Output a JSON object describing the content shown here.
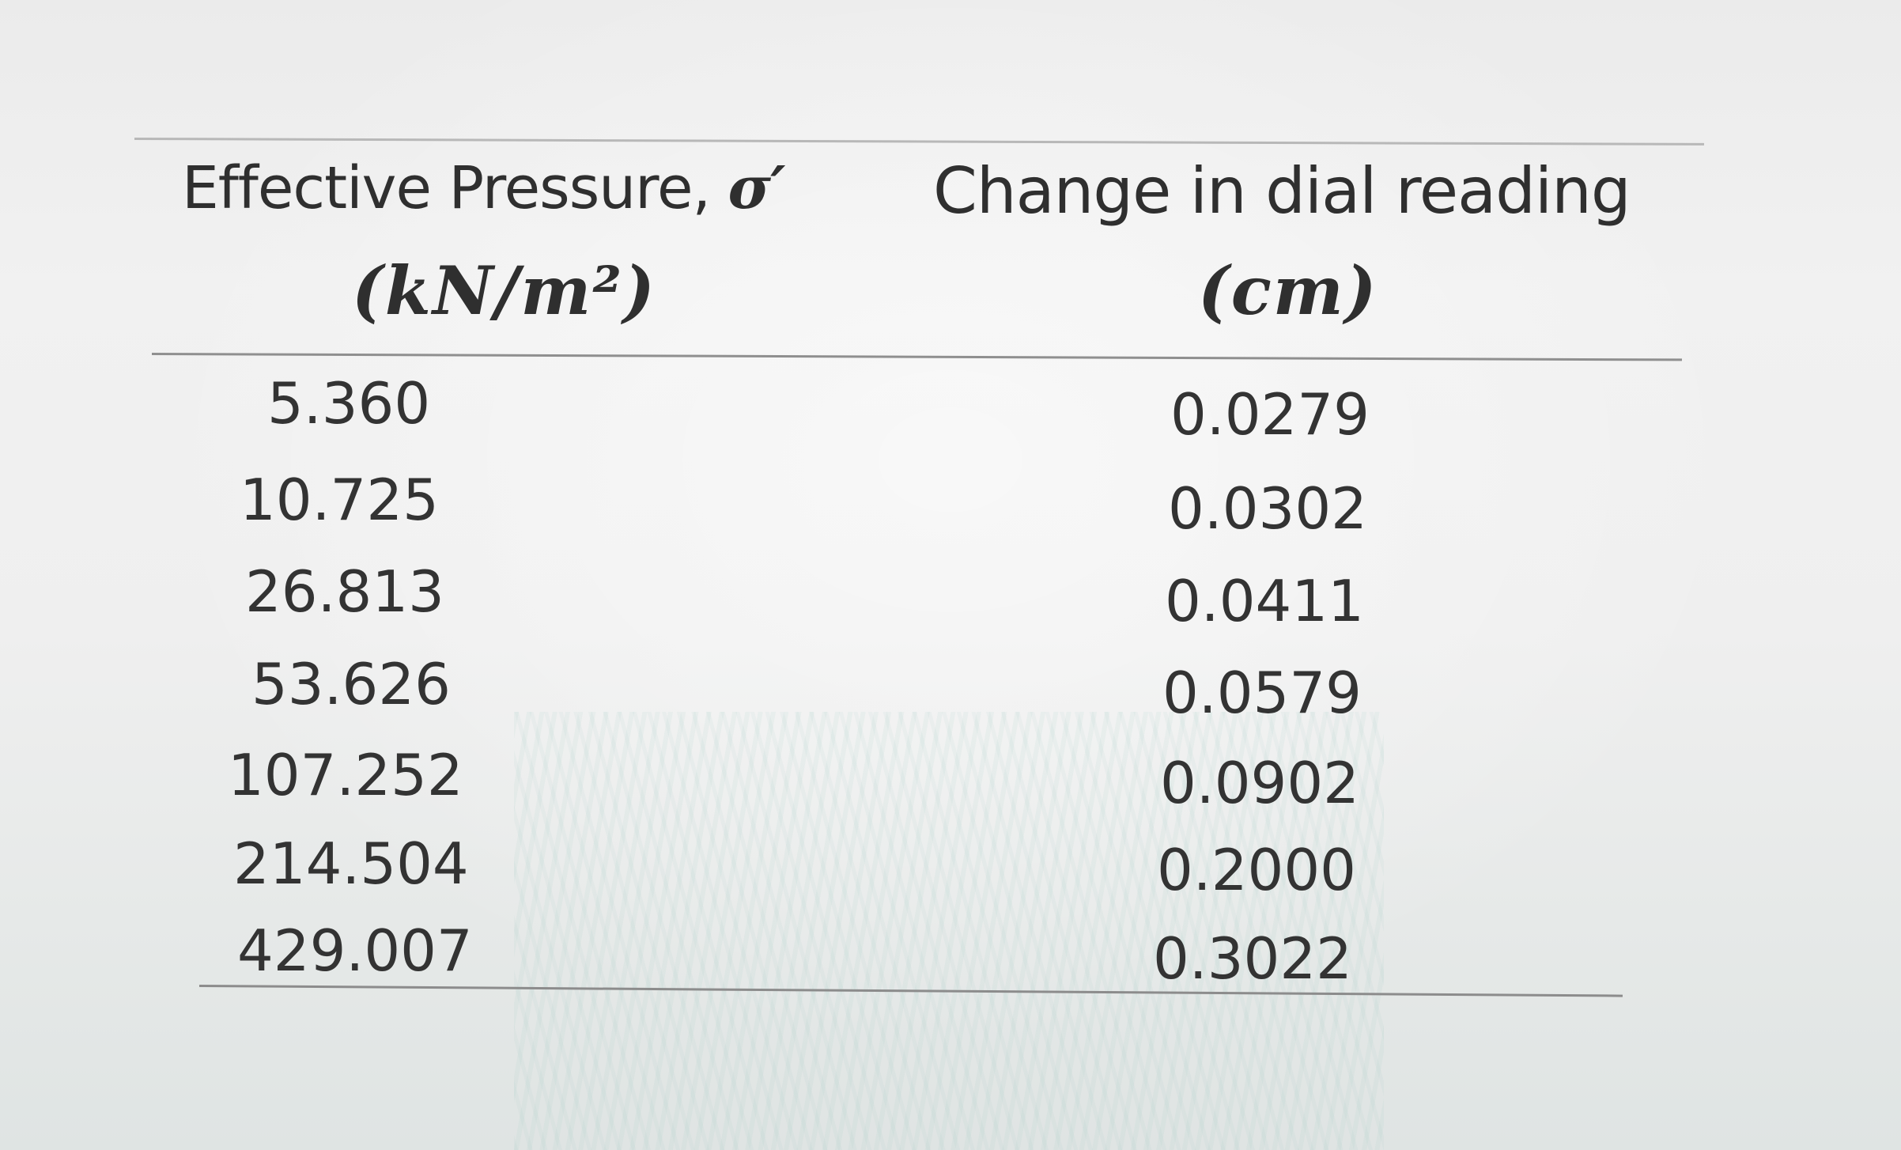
{
  "table": {
    "headers": {
      "col1": {
        "label": "Effective Pressure, ",
        "symbol": "σ′",
        "unit": "(kN/m²)"
      },
      "col2": {
        "label": "Change in dial reading",
        "unit": "(cm)"
      }
    },
    "rows": [
      {
        "pressure": "5.360",
        "dial": "0.0279"
      },
      {
        "pressure": "10.725",
        "dial": "0.0302"
      },
      {
        "pressure": "26.813",
        "dial": "0.0411"
      },
      {
        "pressure": "53.626",
        "dial": "0.0579"
      },
      {
        "pressure": "107.252",
        "dial": "0.0902"
      },
      {
        "pressure": "214.504",
        "dial": "0.2000"
      },
      {
        "pressure": "429.007",
        "dial": "0.3022"
      }
    ]
  }
}
